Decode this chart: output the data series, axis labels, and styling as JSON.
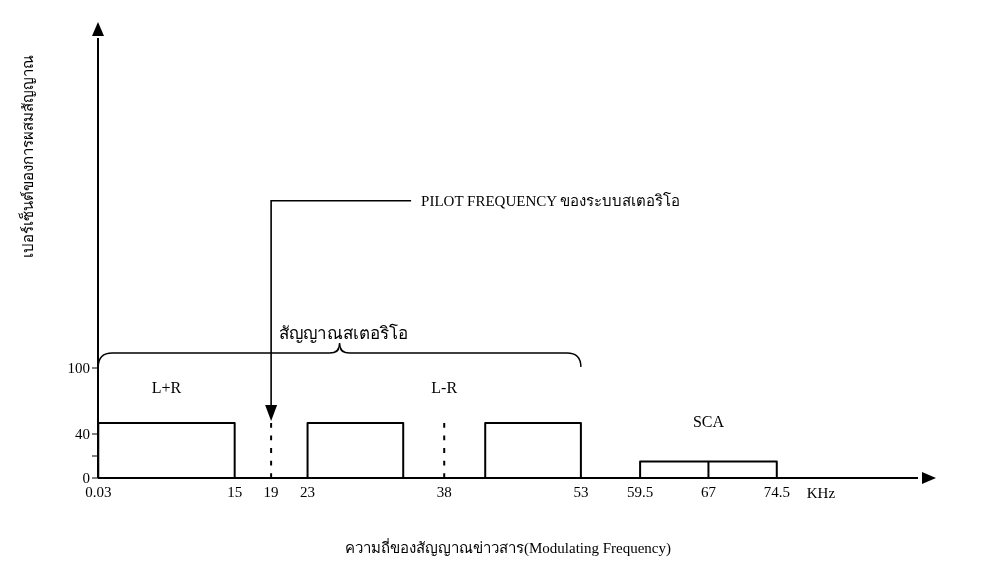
{
  "chart_data": {
    "type": "line",
    "xlabel": "ความถี่ของสัญญาณข่าวสาร(Modulating Frequency)",
    "ylabel": "เปอร์เซ็นต์ของการผสมสัญญาณ",
    "xlim": [
      0,
      90
    ],
    "xticks": [
      0.03,
      15,
      19,
      23,
      38,
      53,
      59.5,
      67,
      74.5
    ],
    "ylim": [
      0,
      400
    ],
    "yticks": [
      0,
      {
        "value": 20,
        "label": null
      },
      40,
      100
    ],
    "marker": "none",
    "series": [
      {
        "color": "#000000",
        "x": [
          0.03,
          0.03,
          15,
          15
        ],
        "values": [
          0,
          50,
          50,
          0
        ]
      },
      {
        "color": "#000000",
        "x": [
          23,
          23,
          33.5,
          33.5
        ],
        "values": [
          0,
          50,
          50,
          0
        ]
      },
      {
        "color": "#000000",
        "x": [
          42.5,
          42.5,
          53,
          53
        ],
        "values": [
          0,
          50,
          50,
          0
        ]
      },
      {
        "color": "#000000",
        "x": [
          59.5,
          59.5,
          74.5,
          74.5
        ],
        "values": [
          0,
          15,
          15,
          0
        ]
      },
      {
        "color": "#000000",
        "x": [
          67,
          67
        ],
        "values": [
          0,
          15
        ]
      },
      {
        "color": "#000000",
        "x": [
          19,
          19
        ],
        "values": [
          0,
          50
        ],
        "line_style": "dashed"
      },
      {
        "color": "#000000",
        "x": [
          38,
          38
        ],
        "values": [
          0,
          50
        ],
        "line_style": "dashed"
      }
    ],
    "annotations": [
      "PILOT FREQUENCY ของระบบสเตอริโอ",
      "L+R",
      "L-R",
      "SCA",
      "สัญญาณสเตอริโอ",
      "KHz"
    ]
  }
}
